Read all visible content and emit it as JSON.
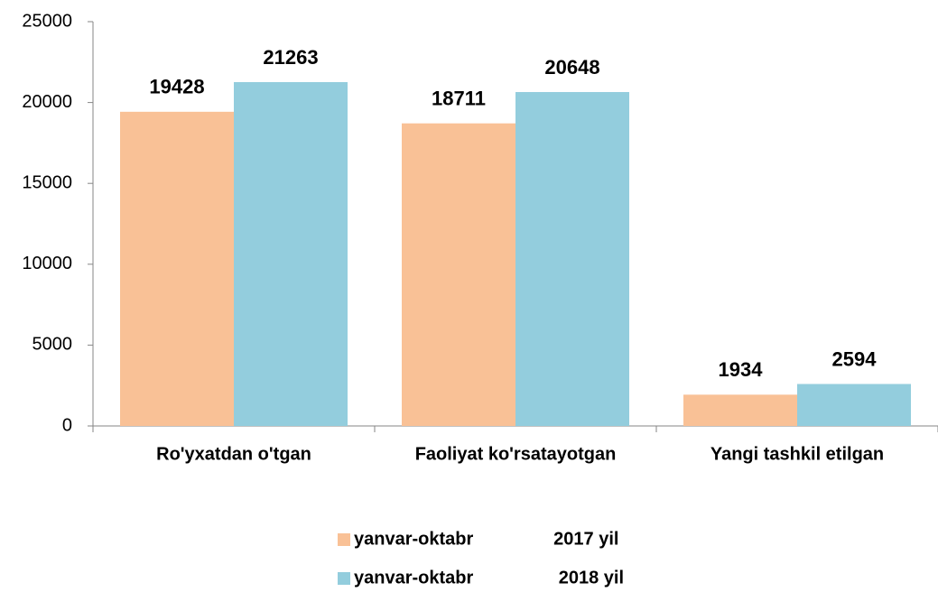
{
  "chart_data": {
    "type": "bar",
    "categories": [
      "Ro'yxatdan o'tgan",
      "Faoliyat ko'rsatayotgan",
      "Yangi tashkil etilgan"
    ],
    "series": [
      {
        "name": "yanvar-oktabr                2017 yil",
        "color": "#f9c196",
        "values": [
          19428,
          18711,
          1934
        ]
      },
      {
        "name": "yanvar-oktabr                 2018 yil",
        "color": "#93cddd",
        "values": [
          21263,
          20648,
          2594
        ]
      }
    ],
    "ylim": [
      0,
      25000
    ],
    "yticks": [
      0,
      5000,
      10000,
      15000,
      20000,
      25000
    ],
    "grid": false,
    "legend": "bottom"
  }
}
